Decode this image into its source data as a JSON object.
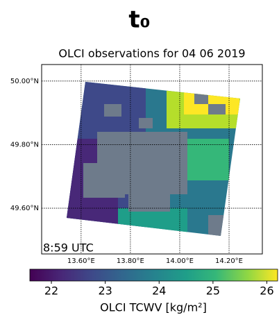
{
  "chart_data": {
    "type": "map",
    "title": "t₀",
    "subtitle": "OLCI observations for 04 06 2019",
    "annotation": "8:59 UTC",
    "xlim": [
      13.44,
      14.335
    ],
    "ylim": [
      49.456,
      50.052
    ],
    "xticks": [
      {
        "value": 13.6,
        "label": "13.60°E"
      },
      {
        "value": 13.8,
        "label": "13.80°E"
      },
      {
        "value": 14.0,
        "label": "14.00°E"
      },
      {
        "value": 14.2,
        "label": "14.20°E"
      }
    ],
    "yticks": [
      {
        "value": 49.6,
        "label": "49.60°N"
      },
      {
        "value": 49.8,
        "label": "49.80°N"
      },
      {
        "value": 50.0,
        "label": "50.00°N"
      }
    ],
    "grid": true,
    "colorbar": {
      "label": "OLCI TCWV [kg/m²]",
      "lim": [
        21.6,
        26.2
      ],
      "ticks": [
        22,
        23,
        24,
        25,
        26
      ],
      "colormap": "viridis"
    }
  }
}
